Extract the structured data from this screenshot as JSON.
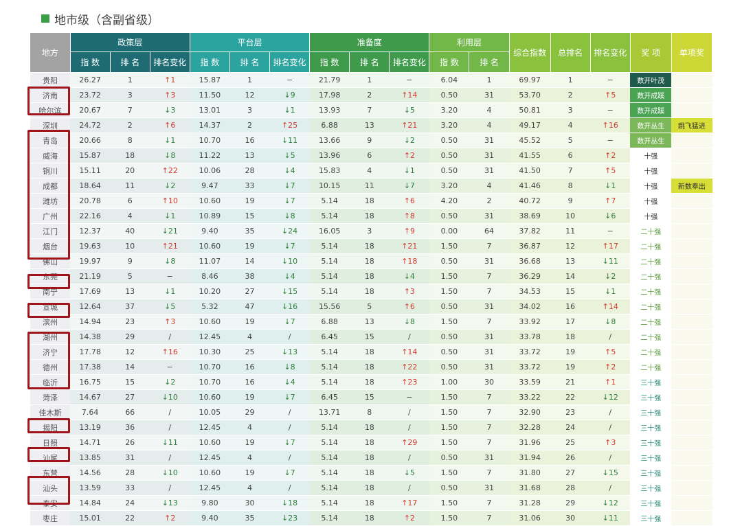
{
  "title": "地市级（含副省级）",
  "headers": {
    "city": "地方",
    "groups": [
      "政策层",
      "平台层",
      "准备度",
      "利用层"
    ],
    "sub": {
      "index": "指 数",
      "rank": "排 名",
      "change": "排名变化"
    },
    "composite": "综合指数",
    "total_rank": "总排名",
    "rank_change": "排名变化",
    "award": "奖 项",
    "special_award": "单项奖"
  },
  "rows": [
    {
      "city": "贵阳",
      "zc": [
        "26.27",
        "1",
        "↑1"
      ],
      "pt": [
        "15.87",
        "1",
        "−"
      ],
      "zb": [
        "21.79",
        "1",
        "−"
      ],
      "ly": [
        "6.04",
        "1"
      ],
      "composite": "69.97",
      "total": "1",
      "change": "−",
      "award": "数开叶茂",
      "special": ""
    },
    {
      "city": "济南",
      "zc": [
        "23.72",
        "3",
        "↑3"
      ],
      "pt": [
        "11.50",
        "12",
        "↓9"
      ],
      "zb": [
        "17.98",
        "2",
        "↑14"
      ],
      "ly": [
        "0.50",
        "31"
      ],
      "composite": "53.70",
      "total": "2",
      "change": "↑5",
      "award": "数开成蹊",
      "special": ""
    },
    {
      "city": "哈尔滨",
      "zc": [
        "20.67",
        "7",
        "↓3"
      ],
      "pt": [
        "13.01",
        "3",
        "↓1"
      ],
      "zb": [
        "13.93",
        "7",
        "↓5"
      ],
      "ly": [
        "3.20",
        "4"
      ],
      "composite": "50.81",
      "total": "3",
      "change": "−",
      "award": "数开成蹊",
      "special": ""
    },
    {
      "city": "深圳",
      "zc": [
        "24.72",
        "2",
        "↑6"
      ],
      "pt": [
        "14.37",
        "2",
        "↑25"
      ],
      "zb": [
        "6.88",
        "13",
        "↑21"
      ],
      "ly": [
        "3.20",
        "4"
      ],
      "composite": "49.17",
      "total": "4",
      "change": "↑16",
      "award": "数开丛生",
      "special": "跳飞猛进"
    },
    {
      "city": "青岛",
      "zc": [
        "20.66",
        "8",
        "↓1"
      ],
      "pt": [
        "10.70",
        "16",
        "↓11"
      ],
      "zb": [
        "13.66",
        "9",
        "↓2"
      ],
      "ly": [
        "0.50",
        "31"
      ],
      "composite": "45.52",
      "total": "5",
      "change": "−",
      "award": "数开丛生",
      "special": ""
    },
    {
      "city": "威海",
      "zc": [
        "15.87",
        "18",
        "↓8"
      ],
      "pt": [
        "11.22",
        "13",
        "↓5"
      ],
      "zb": [
        "13.96",
        "6",
        "↑2"
      ],
      "ly": [
        "0.50",
        "31"
      ],
      "composite": "41.55",
      "total": "6",
      "change": "↑2",
      "award": "十强",
      "special": ""
    },
    {
      "city": "铜川",
      "zc": [
        "15.11",
        "20",
        "↑22"
      ],
      "pt": [
        "10.06",
        "28",
        "↓4"
      ],
      "zb": [
        "15.83",
        "4",
        "↓1"
      ],
      "ly": [
        "0.50",
        "31"
      ],
      "composite": "41.50",
      "total": "7",
      "change": "↑5",
      "award": "十强",
      "special": ""
    },
    {
      "city": "成都",
      "zc": [
        "18.64",
        "11",
        "↓2"
      ],
      "pt": [
        "9.47",
        "33",
        "↓7"
      ],
      "zb": [
        "10.15",
        "11",
        "↓7"
      ],
      "ly": [
        "3.20",
        "4"
      ],
      "composite": "41.46",
      "total": "8",
      "change": "↓1",
      "award": "十强",
      "special": "新数奉出"
    },
    {
      "city": "潍坊",
      "zc": [
        "20.78",
        "6",
        "↑10"
      ],
      "pt": [
        "10.60",
        "19",
        "↓7"
      ],
      "zb": [
        "5.14",
        "18",
        "↑6"
      ],
      "ly": [
        "4.20",
        "2"
      ],
      "composite": "40.72",
      "total": "9",
      "change": "↑7",
      "award": "十强",
      "special": ""
    },
    {
      "city": "广州",
      "zc": [
        "22.16",
        "4",
        "↓1"
      ],
      "pt": [
        "10.89",
        "15",
        "↓8"
      ],
      "zb": [
        "5.14",
        "18",
        "↑8"
      ],
      "ly": [
        "0.50",
        "31"
      ],
      "composite": "38.69",
      "total": "10",
      "change": "↓6",
      "award": "十强",
      "special": ""
    },
    {
      "city": "江门",
      "zc": [
        "12.37",
        "40",
        "↓21"
      ],
      "pt": [
        "9.40",
        "35",
        "↓24"
      ],
      "zb": [
        "16.05",
        "3",
        "↑9"
      ],
      "ly": [
        "0.00",
        "64"
      ],
      "composite": "37.82",
      "total": "11",
      "change": "−",
      "award": "二十强",
      "special": ""
    },
    {
      "city": "烟台",
      "zc": [
        "19.63",
        "10",
        "↑21"
      ],
      "pt": [
        "10.60",
        "19",
        "↓7"
      ],
      "zb": [
        "5.14",
        "18",
        "↑21"
      ],
      "ly": [
        "1.50",
        "7"
      ],
      "composite": "36.87",
      "total": "12",
      "change": "↑17",
      "award": "二十强",
      "special": ""
    },
    {
      "city": "佛山",
      "zc": [
        "19.97",
        "9",
        "↓8"
      ],
      "pt": [
        "11.07",
        "14",
        "↓10"
      ],
      "zb": [
        "5.14",
        "18",
        "↑18"
      ],
      "ly": [
        "0.50",
        "31"
      ],
      "composite": "36.68",
      "total": "13",
      "change": "↓11",
      "award": "二十强",
      "special": ""
    },
    {
      "city": "东莞",
      "zc": [
        "21.19",
        "5",
        "−"
      ],
      "pt": [
        "8.46",
        "38",
        "↓4"
      ],
      "zb": [
        "5.14",
        "18",
        "↓4"
      ],
      "ly": [
        "1.50",
        "7"
      ],
      "composite": "36.29",
      "total": "14",
      "change": "↓2",
      "award": "二十强",
      "special": ""
    },
    {
      "city": "南宁",
      "zc": [
        "17.69",
        "13",
        "↓1"
      ],
      "pt": [
        "10.20",
        "27",
        "↓15"
      ],
      "zb": [
        "5.14",
        "18",
        "↑3"
      ],
      "ly": [
        "1.50",
        "7"
      ],
      "composite": "34.53",
      "total": "15",
      "change": "↓1",
      "award": "二十强",
      "special": ""
    },
    {
      "city": "宣城",
      "zc": [
        "12.64",
        "37",
        "↓5"
      ],
      "pt": [
        "5.32",
        "47",
        "↓16"
      ],
      "zb": [
        "15.56",
        "5",
        "↑6"
      ],
      "ly": [
        "0.50",
        "31"
      ],
      "composite": "34.02",
      "total": "16",
      "change": "↑14",
      "award": "二十强",
      "special": ""
    },
    {
      "city": "滨州",
      "zc": [
        "14.94",
        "23",
        "↑3"
      ],
      "pt": [
        "10.60",
        "19",
        "↓7"
      ],
      "zb": [
        "6.88",
        "13",
        "↓8"
      ],
      "ly": [
        "1.50",
        "7"
      ],
      "composite": "33.92",
      "total": "17",
      "change": "↓8",
      "award": "二十强",
      "special": ""
    },
    {
      "city": "湖州",
      "zc": [
        "14.38",
        "29",
        "/"
      ],
      "pt": [
        "12.45",
        "4",
        "/"
      ],
      "zb": [
        "6.45",
        "15",
        "/"
      ],
      "ly": [
        "0.50",
        "31"
      ],
      "composite": "33.78",
      "total": "18",
      "change": "/",
      "award": "二十强",
      "special": ""
    },
    {
      "city": "济宁",
      "zc": [
        "17.78",
        "12",
        "↑16"
      ],
      "pt": [
        "10.30",
        "25",
        "↓13"
      ],
      "zb": [
        "5.14",
        "18",
        "↑14"
      ],
      "ly": [
        "0.50",
        "31"
      ],
      "composite": "33.72",
      "total": "19",
      "change": "↑5",
      "award": "二十强",
      "special": ""
    },
    {
      "city": "德州",
      "zc": [
        "17.38",
        "14",
        "−"
      ],
      "pt": [
        "10.70",
        "16",
        "↓8"
      ],
      "zb": [
        "5.14",
        "18",
        "↑22"
      ],
      "ly": [
        "0.50",
        "31"
      ],
      "composite": "33.72",
      "total": "19",
      "change": "↑2",
      "award": "二十强",
      "special": ""
    },
    {
      "city": "临沂",
      "zc": [
        "16.75",
        "15",
        "↓2"
      ],
      "pt": [
        "10.70",
        "16",
        "↓4"
      ],
      "zb": [
        "5.14",
        "18",
        "↑23"
      ],
      "ly": [
        "1.00",
        "30"
      ],
      "composite": "33.59",
      "total": "21",
      "change": "↑1",
      "award": "三十强",
      "special": ""
    },
    {
      "city": "菏泽",
      "zc": [
        "14.67",
        "27",
        "↓10"
      ],
      "pt": [
        "10.60",
        "19",
        "↓7"
      ],
      "zb": [
        "6.45",
        "15",
        "−"
      ],
      "ly": [
        "1.50",
        "7"
      ],
      "composite": "33.22",
      "total": "22",
      "change": "↓12",
      "award": "三十强",
      "special": ""
    },
    {
      "city": "佳木斯",
      "zc": [
        "7.64",
        "66",
        "/"
      ],
      "pt": [
        "10.05",
        "29",
        "/"
      ],
      "zb": [
        "13.71",
        "8",
        "/"
      ],
      "ly": [
        "1.50",
        "7"
      ],
      "composite": "32.90",
      "total": "23",
      "change": "/",
      "award": "三十强",
      "special": ""
    },
    {
      "city": "揭阳",
      "zc": [
        "13.19",
        "36",
        "/"
      ],
      "pt": [
        "12.45",
        "4",
        "/"
      ],
      "zb": [
        "5.14",
        "18",
        "/"
      ],
      "ly": [
        "1.50",
        "7"
      ],
      "composite": "32.28",
      "total": "24",
      "change": "/",
      "award": "三十强",
      "special": ""
    },
    {
      "city": "日照",
      "zc": [
        "14.71",
        "26",
        "↓11"
      ],
      "pt": [
        "10.60",
        "19",
        "↓7"
      ],
      "zb": [
        "5.14",
        "18",
        "↑29"
      ],
      "ly": [
        "1.50",
        "7"
      ],
      "composite": "31.96",
      "total": "25",
      "change": "↑3",
      "award": "三十强",
      "special": ""
    },
    {
      "city": "汕尾",
      "zc": [
        "13.85",
        "31",
        "/"
      ],
      "pt": [
        "12.45",
        "4",
        "/"
      ],
      "zb": [
        "5.14",
        "18",
        "/"
      ],
      "ly": [
        "0.50",
        "31"
      ],
      "composite": "31.94",
      "total": "26",
      "change": "/",
      "award": "三十强",
      "special": ""
    },
    {
      "city": "东营",
      "zc": [
        "14.56",
        "28",
        "↓10"
      ],
      "pt": [
        "10.60",
        "19",
        "↓7"
      ],
      "zb": [
        "5.14",
        "18",
        "↓5"
      ],
      "ly": [
        "1.50",
        "7"
      ],
      "composite": "31.80",
      "total": "27",
      "change": "↓15",
      "award": "三十强",
      "special": ""
    },
    {
      "city": "汕头",
      "zc": [
        "13.59",
        "33",
        "/"
      ],
      "pt": [
        "12.45",
        "4",
        "/"
      ],
      "zb": [
        "5.14",
        "18",
        "/"
      ],
      "ly": [
        "0.50",
        "31"
      ],
      "composite": "31.68",
      "total": "28",
      "change": "/",
      "award": "三十强",
      "special": ""
    },
    {
      "city": "泰安",
      "zc": [
        "14.84",
        "24",
        "↓13"
      ],
      "pt": [
        "9.80",
        "30",
        "↓18"
      ],
      "zb": [
        "5.14",
        "18",
        "↑17"
      ],
      "ly": [
        "1.50",
        "7"
      ],
      "composite": "31.28",
      "total": "29",
      "change": "↓12",
      "award": "三十强",
      "special": ""
    },
    {
      "city": "枣庄",
      "zc": [
        "15.01",
        "22",
        "↑2"
      ],
      "pt": [
        "9.40",
        "35",
        "↓23"
      ],
      "zb": [
        "5.14",
        "18",
        "↑2"
      ],
      "ly": [
        "1.50",
        "7"
      ],
      "composite": "31.06",
      "total": "30",
      "change": "↓11",
      "award": "三十强",
      "special": ""
    }
  ]
}
